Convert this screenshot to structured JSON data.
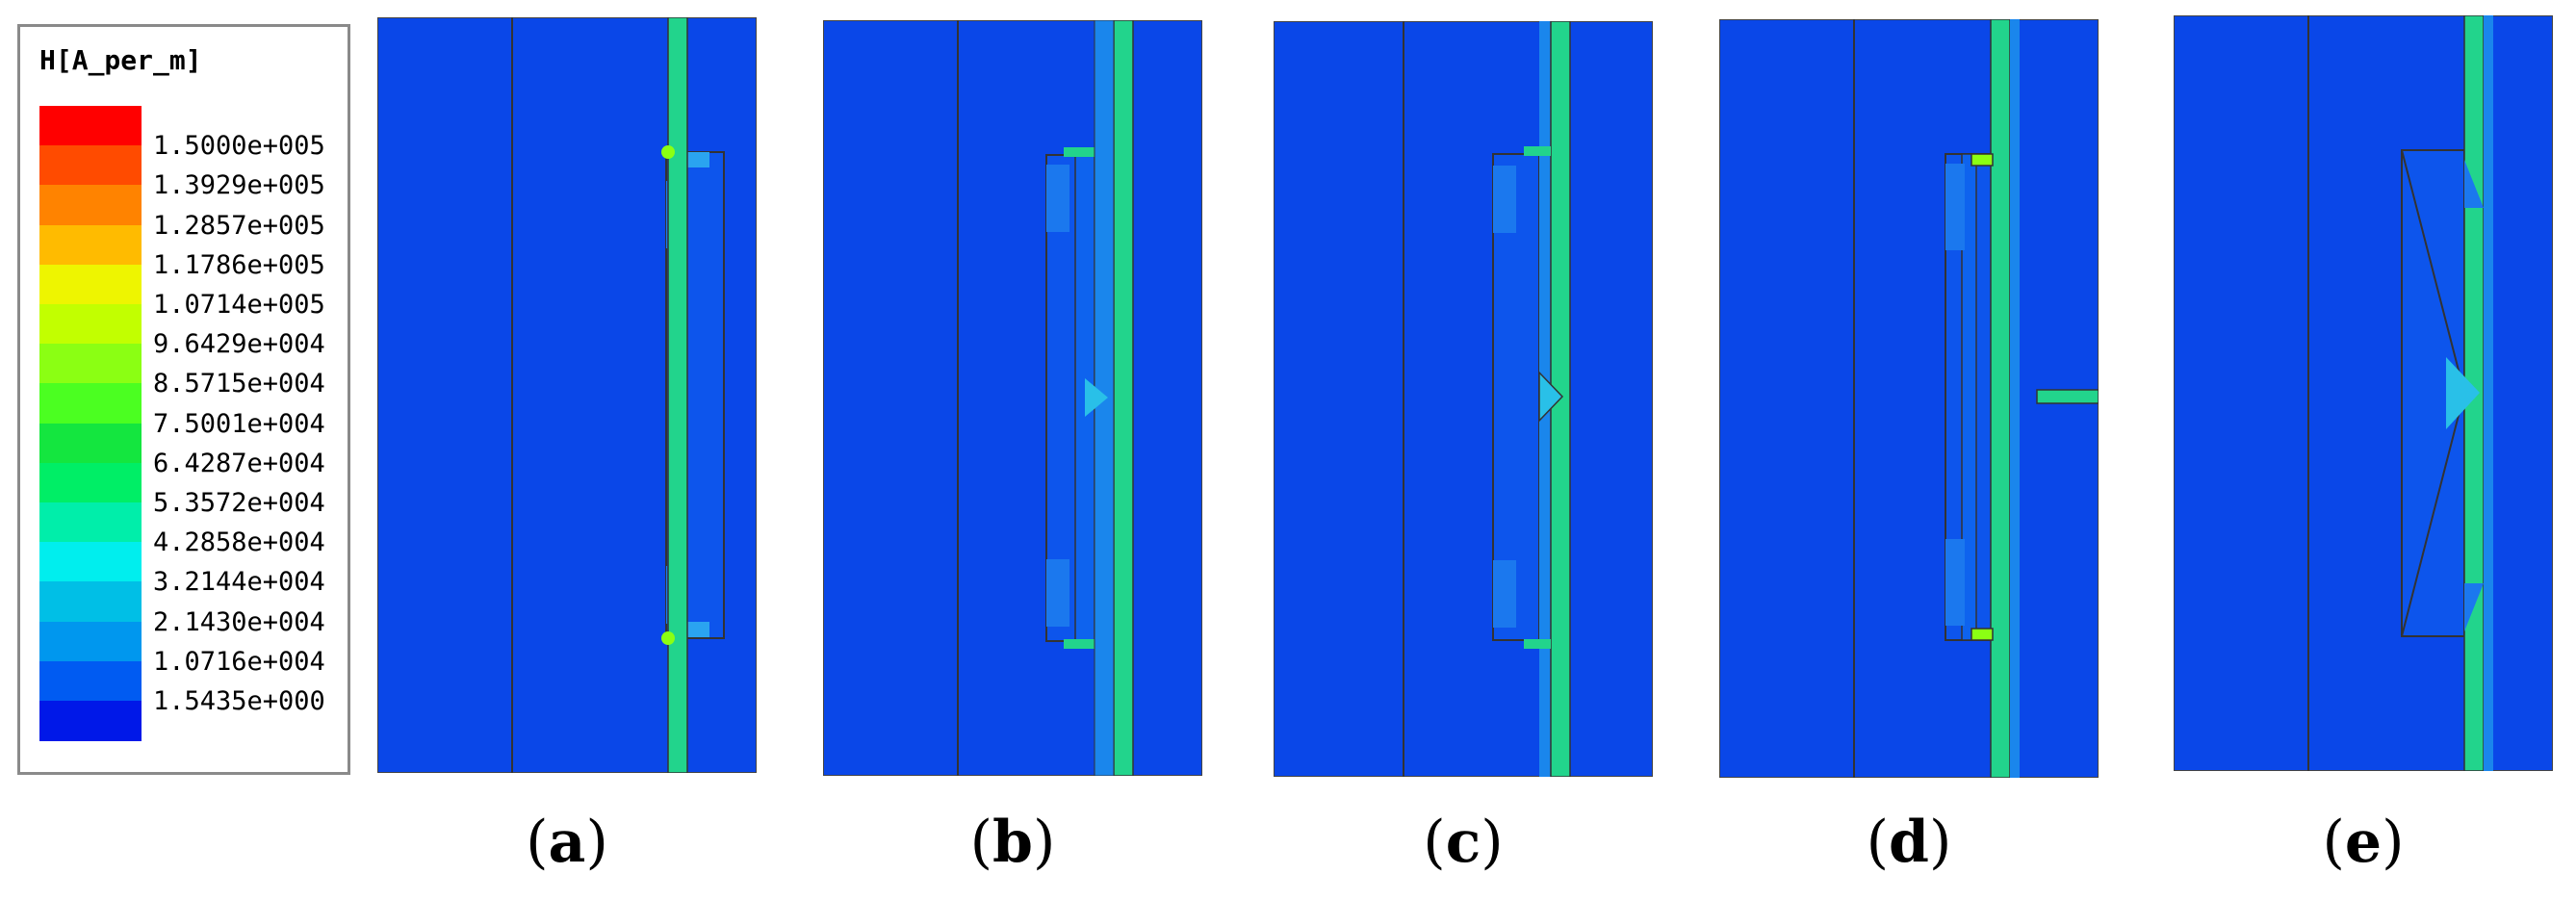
{
  "legend": {
    "title": "H[A_per_m]",
    "colors": [
      "#ff0000",
      "#ff4b00",
      "#ff8300",
      "#ffbb00",
      "#eef500",
      "#c2ff00",
      "#8bff13",
      "#4bff21",
      "#14e63f",
      "#00ee66",
      "#00eeaa",
      "#00eeee",
      "#00bfe6",
      "#0097ee",
      "#005bf2",
      "#0018e8"
    ],
    "labels": [
      "1.5000e+005",
      "1.3929e+005",
      "1.2857e+005",
      "1.1786e+005",
      "1.0714e+005",
      "9.6429e+004",
      "8.5715e+004",
      "7.5001e+004",
      "6.4287e+004",
      "5.3572e+004",
      "4.2858e+004",
      "3.2144e+004",
      "2.1430e+004",
      "1.0716e+004",
      "1.5435e+000"
    ]
  },
  "panels": [
    {
      "caption_letter": "a"
    },
    {
      "caption_letter": "b"
    },
    {
      "caption_letter": "c"
    },
    {
      "caption_letter": "d"
    },
    {
      "caption_letter": "e"
    }
  ]
}
